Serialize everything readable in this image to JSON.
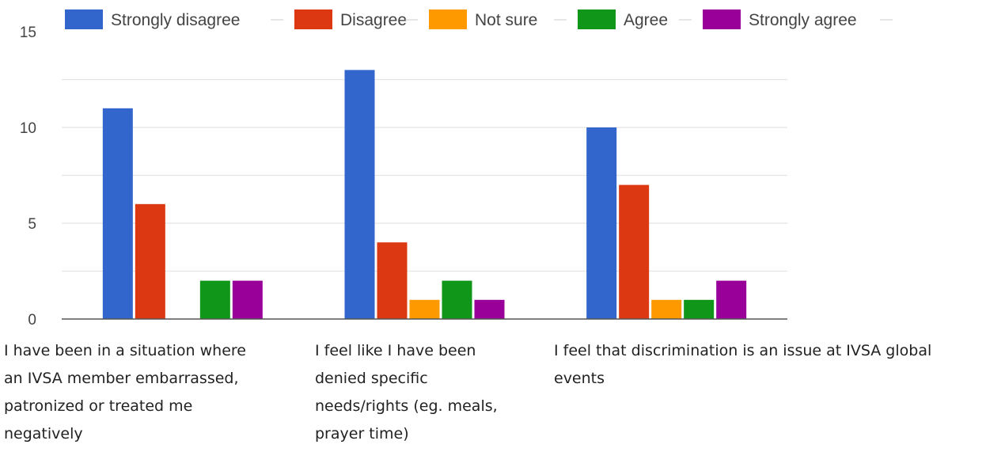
{
  "chart_data": {
    "type": "bar",
    "categories": [
      "I have been in a situation where an IVSA member embarrassed, patronized or treated me negatively",
      "I feel like I have been denied specific needs/rights (eg. meals, prayer time)",
      "I feel that discrimination is an issue at IVSA global events"
    ],
    "series": [
      {
        "name": "Strongly disagree",
        "color": "#3366cc",
        "values": [
          11,
          13,
          10
        ]
      },
      {
        "name": "Disagree",
        "color": "#dc3912",
        "values": [
          6,
          4,
          7
        ]
      },
      {
        "name": "Not sure",
        "color": "#ff9900",
        "values": [
          0,
          1,
          1
        ]
      },
      {
        "name": "Agree",
        "color": "#109618",
        "values": [
          2,
          2,
          1
        ]
      },
      {
        "name": "Strongly agree",
        "color": "#990099",
        "values": [
          2,
          1,
          2
        ]
      }
    ],
    "ylim": [
      0,
      15
    ],
    "yticks": [
      0,
      5,
      10,
      15
    ],
    "grid": true,
    "legend_position": "top"
  },
  "category_lines": [
    [
      "I have been in a situation where",
      "an IVSA member embarrassed,",
      "patronized or treated me",
      "negatively"
    ],
    [
      "I feel like I have been",
      "denied specific",
      "needs/rights (eg. meals,",
      "prayer time)"
    ],
    [
      "I feel that discrimination is an issue at IVSA global",
      "events"
    ]
  ]
}
